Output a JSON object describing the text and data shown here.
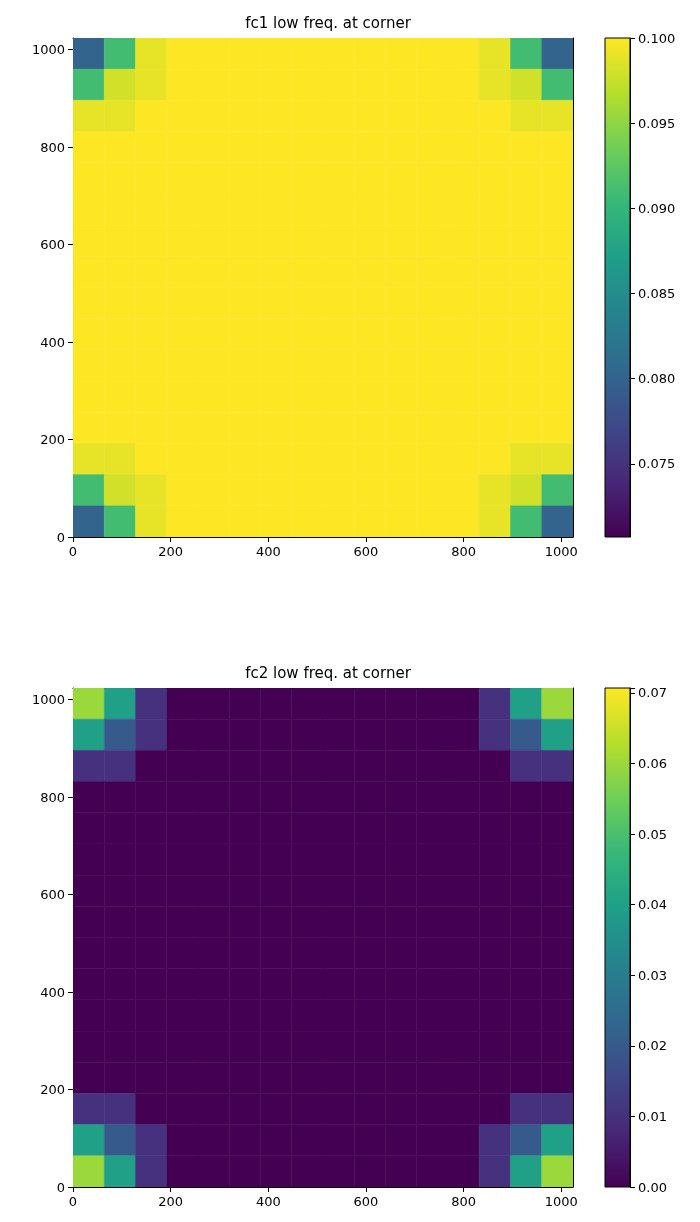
{
  "chart_data": [
    {
      "type": "heatmap",
      "title": "fc1 low freq. at corner",
      "x": [
        32,
        96,
        160,
        224,
        288,
        352,
        416,
        480,
        544,
        608,
        672,
        736,
        800,
        864,
        928,
        992
      ],
      "y": [
        992,
        928,
        864,
        800,
        736,
        672,
        608,
        544,
        480,
        416,
        352,
        288,
        224,
        160,
        96,
        32
      ],
      "cells": [
        [
          0.08,
          0.091,
          0.099,
          0.1,
          0.1,
          0.1,
          0.1,
          0.1,
          0.1,
          0.1,
          0.1,
          0.1,
          0.1,
          0.099,
          0.091,
          0.08
        ],
        [
          0.091,
          0.098,
          0.099,
          0.1,
          0.1,
          0.1,
          0.1,
          0.1,
          0.1,
          0.1,
          0.1,
          0.1,
          0.1,
          0.099,
          0.098,
          0.091
        ],
        [
          0.099,
          0.099,
          0.1,
          0.1,
          0.1,
          0.1,
          0.1,
          0.1,
          0.1,
          0.1,
          0.1,
          0.1,
          0.1,
          0.1,
          0.099,
          0.099
        ],
        [
          0.1,
          0.1,
          0.1,
          0.1,
          0.1,
          0.1,
          0.1,
          0.1,
          0.1,
          0.1,
          0.1,
          0.1,
          0.1,
          0.1,
          0.1,
          0.1
        ],
        [
          0.1,
          0.1,
          0.1,
          0.1,
          0.1,
          0.1,
          0.1,
          0.1,
          0.1,
          0.1,
          0.1,
          0.1,
          0.1,
          0.1,
          0.1,
          0.1
        ],
        [
          0.1,
          0.1,
          0.1,
          0.1,
          0.1,
          0.1,
          0.1,
          0.1,
          0.1,
          0.1,
          0.1,
          0.1,
          0.1,
          0.1,
          0.1,
          0.1
        ],
        [
          0.1,
          0.1,
          0.1,
          0.1,
          0.1,
          0.1,
          0.1,
          0.1,
          0.1,
          0.1,
          0.1,
          0.1,
          0.1,
          0.1,
          0.1,
          0.1
        ],
        [
          0.1,
          0.1,
          0.1,
          0.1,
          0.1,
          0.1,
          0.1,
          0.1,
          0.1,
          0.1,
          0.1,
          0.1,
          0.1,
          0.1,
          0.1,
          0.1
        ],
        [
          0.1,
          0.1,
          0.1,
          0.1,
          0.1,
          0.1,
          0.1,
          0.1,
          0.1,
          0.1,
          0.1,
          0.1,
          0.1,
          0.1,
          0.1,
          0.1
        ],
        [
          0.1,
          0.1,
          0.1,
          0.1,
          0.1,
          0.1,
          0.1,
          0.1,
          0.1,
          0.1,
          0.1,
          0.1,
          0.1,
          0.1,
          0.1,
          0.1
        ],
        [
          0.1,
          0.1,
          0.1,
          0.1,
          0.1,
          0.1,
          0.1,
          0.1,
          0.1,
          0.1,
          0.1,
          0.1,
          0.1,
          0.1,
          0.1,
          0.1
        ],
        [
          0.1,
          0.1,
          0.1,
          0.1,
          0.1,
          0.1,
          0.1,
          0.1,
          0.1,
          0.1,
          0.1,
          0.1,
          0.1,
          0.1,
          0.1,
          0.1
        ],
        [
          0.1,
          0.1,
          0.1,
          0.1,
          0.1,
          0.1,
          0.1,
          0.1,
          0.1,
          0.1,
          0.1,
          0.1,
          0.1,
          0.1,
          0.1,
          0.1
        ],
        [
          0.099,
          0.099,
          0.1,
          0.1,
          0.1,
          0.1,
          0.1,
          0.1,
          0.1,
          0.1,
          0.1,
          0.1,
          0.1,
          0.1,
          0.099,
          0.099
        ],
        [
          0.091,
          0.098,
          0.099,
          0.1,
          0.1,
          0.1,
          0.1,
          0.1,
          0.1,
          0.1,
          0.1,
          0.1,
          0.1,
          0.099,
          0.098,
          0.091
        ],
        [
          0.08,
          0.091,
          0.099,
          0.1,
          0.1,
          0.1,
          0.1,
          0.1,
          0.1,
          0.1,
          0.1,
          0.1,
          0.1,
          0.099,
          0.091,
          0.08
        ]
      ],
      "xlim": [
        0,
        1024
      ],
      "ylim": [
        0,
        1024
      ],
      "xticks": [
        0,
        200,
        400,
        600,
        800,
        1000
      ],
      "yticks": [
        0,
        200,
        400,
        600,
        800,
        1000
      ],
      "clim": [
        0.0707,
        0.1
      ],
      "cticks": [
        {
          "value": 0.075,
          "label": "0.075"
        },
        {
          "value": 0.08,
          "label": "0.080"
        },
        {
          "value": 0.085,
          "label": "0.085"
        },
        {
          "value": 0.09,
          "label": "0.090"
        },
        {
          "value": 0.095,
          "label": "0.095"
        },
        {
          "value": 0.1,
          "label": "0.100"
        }
      ]
    },
    {
      "type": "heatmap",
      "title": "fc2 low freq. at corner",
      "x": [
        32,
        96,
        160,
        224,
        288,
        352,
        416,
        480,
        544,
        608,
        672,
        736,
        800,
        864,
        928,
        992
      ],
      "y": [
        992,
        928,
        864,
        800,
        736,
        672,
        608,
        544,
        480,
        416,
        352,
        288,
        224,
        160,
        96,
        32
      ],
      "cells": [
        [
          0.06,
          0.04,
          0.01,
          0,
          0,
          0,
          0,
          0,
          0,
          0,
          0,
          0,
          0,
          0.01,
          0.04,
          0.06
        ],
        [
          0.04,
          0.02,
          0.01,
          0,
          0,
          0,
          0,
          0,
          0,
          0,
          0,
          0,
          0,
          0.01,
          0.02,
          0.04
        ],
        [
          0.01,
          0.01,
          0,
          0,
          0,
          0,
          0,
          0,
          0,
          0,
          0,
          0,
          0,
          0,
          0.01,
          0.01
        ],
        [
          0,
          0,
          0,
          0,
          0,
          0,
          0,
          0,
          0,
          0,
          0,
          0,
          0,
          0,
          0,
          0
        ],
        [
          0,
          0,
          0,
          0,
          0,
          0,
          0,
          0,
          0,
          0,
          0,
          0,
          0,
          0,
          0,
          0
        ],
        [
          0,
          0,
          0,
          0,
          0,
          0,
          0,
          0,
          0,
          0,
          0,
          0,
          0,
          0,
          0,
          0
        ],
        [
          0,
          0,
          0,
          0,
          0,
          0,
          0,
          0,
          0,
          0,
          0,
          0,
          0,
          0,
          0,
          0
        ],
        [
          0,
          0,
          0,
          0,
          0,
          0,
          0,
          0,
          0,
          0,
          0,
          0,
          0,
          0,
          0,
          0
        ],
        [
          0,
          0,
          0,
          0,
          0,
          0,
          0,
          0,
          0,
          0,
          0,
          0,
          0,
          0,
          0,
          0
        ],
        [
          0,
          0,
          0,
          0,
          0,
          0,
          0,
          0,
          0,
          0,
          0,
          0,
          0,
          0,
          0,
          0
        ],
        [
          0,
          0,
          0,
          0,
          0,
          0,
          0,
          0,
          0,
          0,
          0,
          0,
          0,
          0,
          0,
          0
        ],
        [
          0,
          0,
          0,
          0,
          0,
          0,
          0,
          0,
          0,
          0,
          0,
          0,
          0,
          0,
          0,
          0
        ],
        [
          0,
          0,
          0,
          0,
          0,
          0,
          0,
          0,
          0,
          0,
          0,
          0,
          0,
          0,
          0,
          0
        ],
        [
          0.01,
          0.01,
          0,
          0,
          0,
          0,
          0,
          0,
          0,
          0,
          0,
          0,
          0,
          0,
          0.01,
          0.01
        ],
        [
          0.04,
          0.02,
          0.01,
          0,
          0,
          0,
          0,
          0,
          0,
          0,
          0,
          0,
          0,
          0.01,
          0.02,
          0.04
        ],
        [
          0.06,
          0.04,
          0.01,
          0,
          0,
          0,
          0,
          0,
          0,
          0,
          0,
          0,
          0,
          0.01,
          0.04,
          0.06
        ]
      ],
      "xlim": [
        0,
        1024
      ],
      "ylim": [
        0,
        1024
      ],
      "xticks": [
        0,
        200,
        400,
        600,
        800,
        1000
      ],
      "yticks": [
        0,
        200,
        400,
        600,
        800,
        1000
      ],
      "clim": [
        0,
        0.0707
      ],
      "cticks": [
        {
          "value": 0,
          "label": "0.00"
        },
        {
          "value": 0.01,
          "label": "0.01"
        },
        {
          "value": 0.02,
          "label": "0.02"
        },
        {
          "value": 0.03,
          "label": "0.03"
        },
        {
          "value": 0.04,
          "label": "0.04"
        },
        {
          "value": 0.05,
          "label": "0.05"
        },
        {
          "value": 0.06,
          "label": "0.06"
        },
        {
          "value": 0.07,
          "label": "0.07"
        }
      ]
    }
  ]
}
